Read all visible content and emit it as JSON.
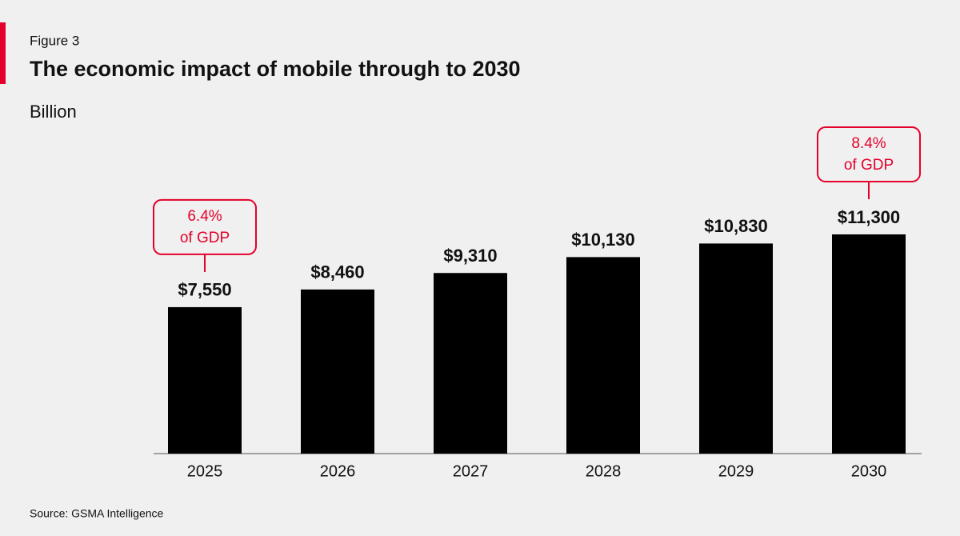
{
  "chart_data": {
    "type": "bar",
    "label": "Figure 3",
    "title": "The economic impact of mobile through to 2030",
    "subtitle": "Billion",
    "source": "Source: GSMA Intelligence",
    "categories": [
      "2025",
      "2026",
      "2027",
      "2028",
      "2029",
      "2030"
    ],
    "values": [
      7550,
      8460,
      9310,
      10130,
      10830,
      11300
    ],
    "value_labels": [
      "$7,550",
      "$8,460",
      "$9,310",
      "$10,130",
      "$10,830",
      "$11,300"
    ],
    "color": "#000000",
    "annotations": [
      {
        "x": "2025",
        "lines": [
          "6.4%",
          "of GDP"
        ],
        "color": "#e4002b"
      },
      {
        "x": "2030",
        "lines": [
          "8.4%",
          "of GDP"
        ],
        "color": "#e4002b"
      }
    ]
  }
}
